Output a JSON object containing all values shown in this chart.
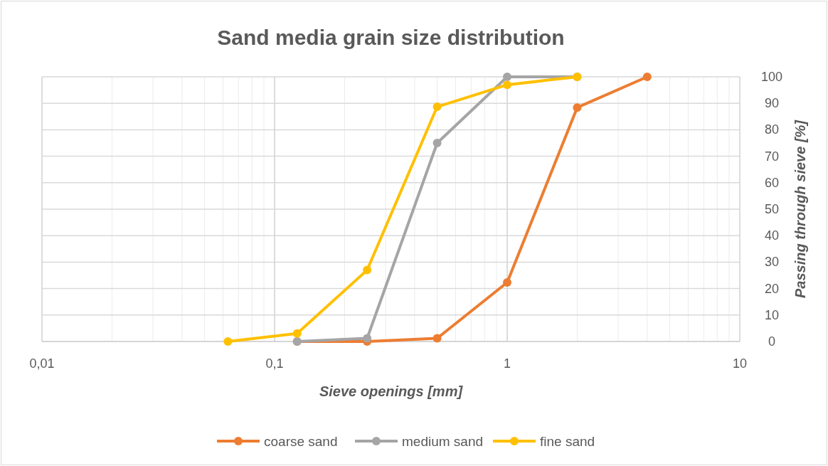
{
  "chart_data": {
    "type": "line",
    "title": "Sand media grain size distribution",
    "xlabel": "Sieve openings [mm]",
    "ylabel": "Passing through sieve [%]",
    "log": "x",
    "grid": true,
    "legend": "bottom",
    "marker": "circle",
    "line_style": "solid",
    "xlim": [
      0.01,
      10
    ],
    "xticks": [
      {
        "value": 0.01,
        "label": "0,01"
      },
      {
        "value": 0.1,
        "label": "0,1"
      },
      1,
      10
    ],
    "ylim": [
      0,
      100
    ],
    "yticks": [
      0,
      10,
      20,
      30,
      40,
      50,
      60,
      70,
      80,
      90,
      100
    ],
    "series": [
      {
        "name": "coarse sand",
        "color": "#ed7d31",
        "x": [
          0.125,
          0.25,
          0.5,
          1,
          2,
          4
        ],
        "values": [
          0,
          0,
          1.2,
          22.3,
          88.4,
          100
        ]
      },
      {
        "name": "medium sand",
        "color": "#a5a5a5",
        "x": [
          0.125,
          0.25,
          0.5,
          1,
          2
        ],
        "values": [
          0,
          1.2,
          75,
          100,
          100
        ]
      },
      {
        "name": "fine sand",
        "color": "#ffc000",
        "x": [
          0.063,
          0.125,
          0.25,
          0.5,
          1,
          2
        ],
        "values": [
          0,
          3,
          27,
          88.7,
          97,
          100
        ]
      }
    ]
  }
}
